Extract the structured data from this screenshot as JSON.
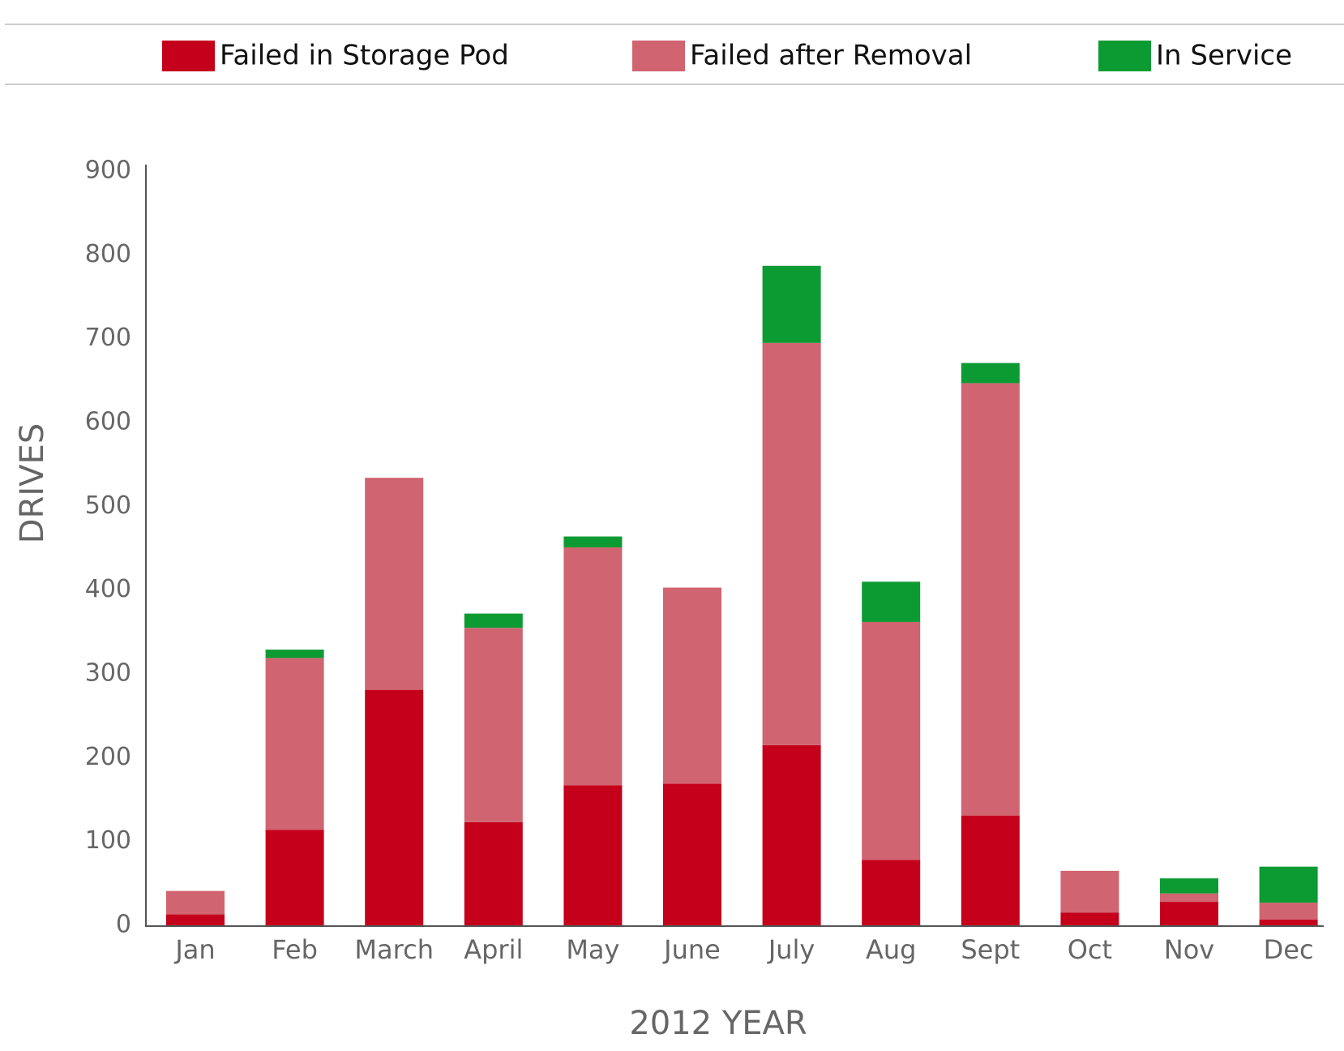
{
  "chart_data": {
    "type": "stacked_bar",
    "x_label": "2012 YEAR",
    "y_label": "DRIVES",
    "categories": [
      "Jan",
      "Feb",
      "March",
      "April",
      "May",
      "June",
      "July",
      "Aug",
      "Sept",
      "Oct",
      "Nov",
      "Dec"
    ],
    "series": [
      {
        "name": "Failed in Storage Pod",
        "color": "#c4001b",
        "values": [
          13,
          114,
          281,
          123,
          167,
          169,
          215,
          78,
          131,
          15,
          28,
          7
        ]
      },
      {
        "name": "Failed after Removal",
        "color": "#d06470",
        "values": [
          28,
          205,
          253,
          232,
          284,
          234,
          480,
          284,
          516,
          50,
          10,
          20
        ]
      },
      {
        "name": "In Service",
        "color": "#0c9b33",
        "values": [
          0,
          10,
          0,
          17,
          13,
          0,
          92,
          48,
          24,
          0,
          18,
          43
        ]
      }
    ],
    "ylim": [
      0,
      900
    ],
    "yticks": [
      0,
      100,
      200,
      300,
      400,
      500,
      600,
      700,
      800,
      900
    ],
    "grid": false,
    "legend": "top"
  }
}
